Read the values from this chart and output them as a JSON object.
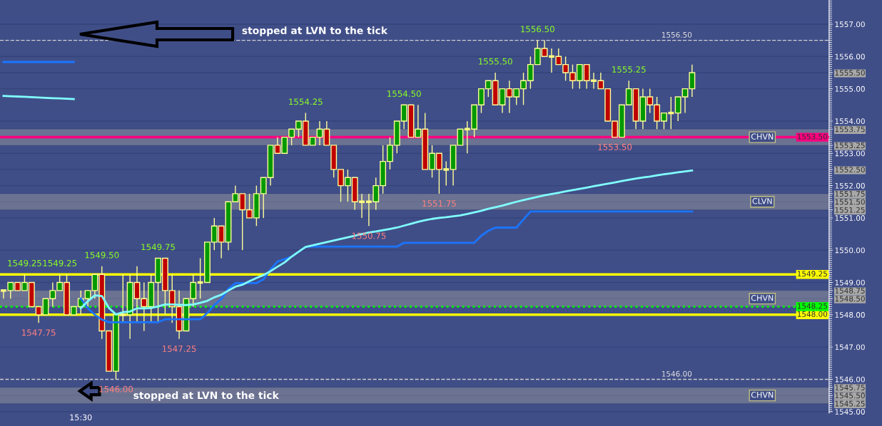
{
  "chart_data": {
    "type": "candlestick",
    "categories": [
      null,
      null,
      null,
      null,
      null,
      null,
      null,
      null,
      null,
      null,
      null,
      "15:30",
      null,
      null,
      null,
      null,
      null,
      null,
      null,
      null,
      null,
      null,
      null,
      null,
      null,
      null,
      null,
      null,
      null,
      null,
      null,
      null,
      null,
      null,
      null,
      null,
      null,
      null,
      null,
      null,
      null,
      null,
      null,
      null,
      null,
      null,
      null,
      null,
      null,
      null,
      null,
      null,
      null,
      null,
      null,
      null,
      null,
      null,
      null,
      null,
      null,
      null,
      null,
      null,
      null,
      null,
      null,
      null,
      null,
      null,
      null,
      null,
      null,
      null,
      null,
      null,
      null,
      null,
      null,
      null,
      null,
      null,
      null,
      null,
      null,
      null,
      null,
      null,
      null,
      null,
      null,
      null,
      null,
      null,
      null,
      null,
      null,
      null,
      null
    ],
    "ohlc": [
      [
        1548.75,
        1548.75,
        1548.5,
        1548.75
      ],
      [
        1548.75,
        1549.0,
        1548.5,
        1549.0
      ],
      [
        1549.0,
        1549.0,
        1548.75,
        1548.75
      ],
      [
        1548.75,
        1549.25,
        1548.75,
        1549.0
      ],
      [
        1549.0,
        1549.0,
        1548.25,
        1548.25
      ],
      [
        1548.25,
        1548.25,
        1547.75,
        1548.0
      ],
      [
        1548.0,
        1548.5,
        1548.0,
        1548.5
      ],
      [
        1548.5,
        1549.0,
        1548.25,
        1548.75
      ],
      [
        1548.75,
        1549.25,
        1548.75,
        1549.0
      ],
      [
        1549.0,
        1549.25,
        1548.0,
        1548.0
      ],
      [
        1548.0,
        1548.25,
        1548.0,
        1548.25
      ],
      [
        1548.25,
        1548.75,
        1548.0,
        1548.5
      ],
      [
        1548.5,
        1548.75,
        1548.25,
        1548.75
      ],
      [
        1548.75,
        1549.25,
        1548.5,
        1549.25
      ],
      [
        1549.25,
        1549.5,
        1547.25,
        1547.5
      ],
      [
        1547.5,
        1547.5,
        1546.25,
        1546.25
      ],
      [
        1546.25,
        1548.0,
        1546.0,
        1548.0
      ],
      [
        1548.0,
        1549.25,
        1547.75,
        1548.0
      ],
      [
        1548.0,
        1549.25,
        1547.25,
        1549.0
      ],
      [
        1549.0,
        1549.5,
        1547.75,
        1548.5
      ],
      [
        1548.5,
        1549.0,
        1547.5,
        1548.25
      ],
      [
        1548.25,
        1549.25,
        1547.75,
        1549.0
      ],
      [
        1549.0,
        1549.75,
        1547.75,
        1549.75
      ],
      [
        1549.75,
        1549.75,
        1548.0,
        1548.75
      ],
      [
        1548.75,
        1549.25,
        1547.75,
        1548.25
      ],
      [
        1548.25,
        1548.75,
        1547.25,
        1547.5
      ],
      [
        1547.5,
        1548.5,
        1547.5,
        1548.5
      ],
      [
        1548.5,
        1549.25,
        1548.25,
        1549.0
      ],
      [
        1549.0,
        1549.75,
        1548.5,
        1549.0
      ],
      [
        1549.0,
        1550.25,
        1549.0,
        1550.25
      ],
      [
        1550.25,
        1551.0,
        1550.0,
        1550.75
      ],
      [
        1550.75,
        1550.75,
        1549.75,
        1550.25
      ],
      [
        1550.25,
        1551.5,
        1550.0,
        1551.5
      ],
      [
        1551.5,
        1552.0,
        1551.5,
        1551.75
      ],
      [
        1551.75,
        1551.75,
        1550.0,
        1551.25
      ],
      [
        1551.25,
        1551.75,
        1551.0,
        1551.0
      ],
      [
        1551.0,
        1552.0,
        1550.75,
        1551.75
      ],
      [
        1551.75,
        1552.25,
        1551.0,
        1552.25
      ],
      [
        1552.25,
        1553.25,
        1552.0,
        1553.25
      ],
      [
        1553.25,
        1553.5,
        1553.0,
        1553.0
      ],
      [
        1553.0,
        1553.5,
        1553.0,
        1553.5
      ],
      [
        1553.5,
        1553.75,
        1553.25,
        1553.75
      ],
      [
        1553.75,
        1554.0,
        1553.5,
        1554.0
      ],
      [
        1554.0,
        1554.25,
        1553.25,
        1553.25
      ],
      [
        1553.25,
        1553.5,
        1553.25,
        1553.5
      ],
      [
        1553.5,
        1554.0,
        1553.25,
        1553.75
      ],
      [
        1553.75,
        1554.0,
        1553.25,
        1553.25
      ],
      [
        1553.25,
        1553.25,
        1552.25,
        1552.5
      ],
      [
        1552.5,
        1552.5,
        1551.5,
        1552.0
      ],
      [
        1552.0,
        1552.5,
        1551.5,
        1552.25
      ],
      [
        1552.25,
        1552.25,
        1551.25,
        1551.5
      ],
      [
        1551.5,
        1551.75,
        1551.0,
        1551.5
      ],
      [
        1551.5,
        1551.75,
        1550.75,
        1551.5
      ],
      [
        1551.5,
        1552.25,
        1551.25,
        1552.0
      ],
      [
        1552.0,
        1553.25,
        1551.75,
        1552.75
      ],
      [
        1552.75,
        1553.5,
        1552.5,
        1553.25
      ],
      [
        1553.25,
        1554.0,
        1553.0,
        1554.0
      ],
      [
        1554.0,
        1554.5,
        1553.75,
        1554.5
      ],
      [
        1554.5,
        1554.5,
        1553.5,
        1553.5
      ],
      [
        1553.5,
        1554.5,
        1553.5,
        1553.75
      ],
      [
        1553.75,
        1554.25,
        1552.5,
        1552.5
      ],
      [
        1552.5,
        1553.25,
        1552.25,
        1553.0
      ],
      [
        1553.0,
        1553.0,
        1551.75,
        1552.5
      ],
      [
        1552.5,
        1552.75,
        1552.0,
        1552.5
      ],
      [
        1552.5,
        1553.25,
        1552.0,
        1553.25
      ],
      [
        1553.25,
        1553.75,
        1553.25,
        1553.75
      ],
      [
        1553.75,
        1554.0,
        1553.0,
        1553.75
      ],
      [
        1553.75,
        1554.5,
        1553.5,
        1554.5
      ],
      [
        1554.5,
        1555.0,
        1554.25,
        1555.0
      ],
      [
        1555.0,
        1555.25,
        1554.75,
        1555.25
      ],
      [
        1555.25,
        1555.5,
        1554.5,
        1554.5
      ],
      [
        1554.5,
        1555.0,
        1554.25,
        1555.0
      ],
      [
        1555.0,
        1555.25,
        1554.25,
        1554.75
      ],
      [
        1554.75,
        1555.0,
        1554.5,
        1555.0
      ],
      [
        1555.0,
        1555.5,
        1554.5,
        1555.25
      ],
      [
        1555.25,
        1556.0,
        1555.0,
        1555.75
      ],
      [
        1555.75,
        1556.5,
        1555.75,
        1556.25
      ],
      [
        1556.25,
        1556.5,
        1556.0,
        1556.0
      ],
      [
        1556.0,
        1556.25,
        1555.5,
        1556.0
      ],
      [
        1556.0,
        1556.25,
        1555.75,
        1555.75
      ],
      [
        1555.75,
        1556.0,
        1555.25,
        1555.5
      ],
      [
        1555.5,
        1555.75,
        1555.0,
        1555.25
      ],
      [
        1555.25,
        1555.75,
        1555.0,
        1555.75
      ],
      [
        1555.75,
        1555.75,
        1555.0,
        1555.25
      ],
      [
        1555.25,
        1555.5,
        1555.0,
        1555.25
      ],
      [
        1555.25,
        1555.5,
        1555.0,
        1555.0
      ],
      [
        1555.0,
        1555.0,
        1554.0,
        1554.0
      ],
      [
        1554.0,
        1554.0,
        1553.5,
        1553.5
      ],
      [
        1553.5,
        1554.5,
        1553.5,
        1554.5
      ],
      [
        1554.5,
        1555.25,
        1554.5,
        1555.0
      ],
      [
        1555.0,
        1555.0,
        1553.75,
        1554.0
      ],
      [
        1554.0,
        1555.0,
        1553.75,
        1554.75
      ],
      [
        1554.75,
        1555.0,
        1554.25,
        1554.5
      ],
      [
        1554.5,
        1554.75,
        1553.75,
        1554.0
      ],
      [
        1554.0,
        1554.25,
        1553.75,
        1554.25
      ],
      [
        1554.25,
        1554.75,
        1553.75,
        1554.25
      ],
      [
        1554.25,
        1554.75,
        1554.0,
        1554.75
      ],
      [
        1554.75,
        1555.0,
        1554.25,
        1555.0
      ],
      [
        1555.0,
        1555.75,
        1554.75,
        1555.5
      ]
    ],
    "colors": [
      "#ffff80",
      "#009900",
      "#c00000",
      "#009900",
      "#c00000",
      "#c00000",
      "#009900",
      "#009900",
      "#009900",
      "#c00000",
      "#009900",
      "#009900",
      "#009900",
      "#009900",
      "#c00000",
      "#c00000",
      "#009900",
      "#ffff80",
      "#009900",
      "#c00000",
      "#c00000",
      "#009900",
      "#009900",
      "#c00000",
      "#c00000",
      "#c00000",
      "#009900",
      "#009900",
      "#ffff80",
      "#009900",
      "#009900",
      "#c00000",
      "#009900",
      "#009900",
      "#c00000",
      "#c00000",
      "#009900",
      "#009900",
      "#009900",
      "#c00000",
      "#009900",
      "#009900",
      "#009900",
      "#c00000",
      "#009900",
      "#009900",
      "#c00000",
      "#c00000",
      "#c00000",
      "#009900",
      "#c00000",
      "#ffff80",
      "#ffff80",
      "#009900",
      "#009900",
      "#009900",
      "#009900",
      "#009900",
      "#c00000",
      "#009900",
      "#c00000",
      "#009900",
      "#c00000",
      "#ffff80",
      "#009900",
      "#009900",
      "#ffff80",
      "#009900",
      "#009900",
      "#009900",
      "#c00000",
      "#009900",
      "#c00000",
      "#009900",
      "#009900",
      "#009900",
      "#009900",
      "#c00000",
      "#ffff80",
      "#c00000",
      "#c00000",
      "#c00000",
      "#009900",
      "#c00000",
      "#ffff80",
      "#c00000",
      "#c00000",
      "#c00000",
      "#009900",
      "#009900",
      "#c00000",
      "#009900",
      "#c00000",
      "#c00000",
      "#009900",
      "#ffff80",
      "#009900",
      "#009900",
      "#009900"
    ],
    "value_labels": [
      null,
      null,
      null,
      "1549.25",
      null,
      "1547.75",
      null,
      null,
      "1549.25",
      null,
      null,
      null,
      null,
      null,
      "1549.50",
      null,
      "1546.00",
      null,
      null,
      null,
      null,
      null,
      "1549.75",
      null,
      null,
      "1547.25",
      null,
      null,
      null,
      null,
      null,
      null,
      null,
      null,
      null,
      null,
      null,
      null,
      null,
      null,
      null,
      null,
      null,
      "1554.25",
      null,
      null,
      null,
      null,
      null,
      null,
      null,
      null,
      "1550.75",
      null,
      null,
      null,
      null,
      "1554.50",
      null,
      null,
      null,
      null,
      "1551.75",
      null,
      null,
      null,
      null,
      null,
      null,
      null,
      "1555.50",
      null,
      null,
      null,
      null,
      null,
      "1556.50",
      null,
      null,
      null,
      null,
      null,
      null,
      null,
      null,
      null,
      null,
      "1553.50",
      null,
      "1555.25",
      null,
      null,
      null,
      null,
      null,
      null,
      null,
      null,
      null
    ],
    "series": [
      {
        "type": "line",
        "color": "#80ffff",
        "values": [
          1554.78,
          1554.77,
          1554.76,
          1554.75,
          1554.74,
          1554.73,
          1554.72,
          1554.71,
          1554.7,
          1554.69,
          1554.68,
          null,
          null,
          null,
          null,
          null,
          null,
          null,
          null,
          null,
          null,
          null,
          null,
          null,
          null,
          null,
          null,
          null,
          null,
          null,
          null,
          null,
          null,
          null,
          null,
          null,
          null,
          null,
          null,
          null,
          null,
          null,
          null,
          null,
          null,
          null,
          null,
          null,
          null,
          null,
          null,
          null,
          null,
          null,
          null,
          null,
          null,
          null,
          null,
          null,
          null,
          null,
          null,
          null,
          null,
          null,
          null,
          null,
          null,
          null,
          null,
          null,
          null,
          null,
          null,
          null,
          null,
          null,
          null,
          null,
          null,
          null,
          null,
          null,
          null,
          null,
          null,
          null,
          null,
          null,
          null,
          null,
          null,
          null,
          null,
          null,
          null,
          null,
          null
        ]
      },
      {
        "type": "line",
        "color": "#1a75ff",
        "values": [
          1555.83,
          1555.83,
          1555.83,
          1555.83,
          1555.83,
          1555.83,
          1555.83,
          1555.83,
          1555.83,
          1555.83,
          1555.83,
          null,
          null,
          null,
          null,
          null,
          null,
          null,
          null,
          null,
          null,
          null,
          null,
          null,
          null,
          null,
          null,
          null,
          null,
          null,
          null,
          null,
          null,
          null,
          null,
          null,
          null,
          null,
          null,
          null,
          null,
          null,
          null,
          null,
          null,
          null,
          null,
          null,
          null,
          null,
          null,
          null,
          null,
          null,
          null,
          null,
          null,
          null,
          null,
          null,
          null,
          null,
          null,
          null,
          null,
          null,
          null,
          null,
          null,
          null,
          null,
          null,
          null,
          null,
          null,
          null,
          null,
          null,
          null,
          null,
          null,
          null,
          null,
          null,
          null,
          null,
          null,
          null,
          null,
          null,
          null,
          null,
          null,
          null,
          null,
          null,
          null,
          null,
          null
        ]
      },
      {
        "type": "line",
        "color": "#1a75ff",
        "values": [
          null,
          null,
          null,
          null,
          null,
          null,
          null,
          null,
          null,
          null,
          null,
          1548.5,
          1548.2,
          1548.0,
          1547.85,
          1547.77,
          1547.77,
          1547.77,
          1547.77,
          1547.77,
          1547.77,
          1547.77,
          1547.77,
          1547.86,
          1547.86,
          1547.86,
          1547.86,
          1547.86,
          1547.86,
          1548.05,
          1548.3,
          1548.49,
          1548.8,
          1548.98,
          1548.98,
          1548.98,
          1548.98,
          1549.1,
          1549.4,
          1549.65,
          1549.72,
          1549.8,
          1549.95,
          1550.1,
          1550.11,
          1550.11,
          1550.11,
          1550.11,
          1550.11,
          1550.11,
          1550.11,
          1550.11,
          1550.11,
          1550.11,
          1550.11,
          1550.11,
          1550.11,
          1550.23,
          1550.23,
          1550.23,
          1550.23,
          1550.23,
          1550.23,
          1550.23,
          1550.23,
          1550.23,
          1550.23,
          1550.23,
          1550.45,
          1550.6,
          1550.7,
          1550.7,
          1550.7,
          1550.7,
          1550.95,
          1551.2,
          1551.2,
          1551.2,
          1551.2,
          1551.2,
          1551.2,
          1551.2,
          1551.2,
          1551.2,
          1551.2,
          1551.2,
          1551.2,
          1551.2,
          1551.2,
          1551.2,
          1551.2,
          1551.2,
          1551.2,
          1551.2,
          1551.2,
          1551.2,
          1551.2,
          1551.2,
          1551.2
        ]
      },
      {
        "type": "line",
        "color": "#80ffff",
        "values": [
          null,
          null,
          null,
          null,
          null,
          null,
          null,
          null,
          null,
          null,
          null,
          1548.2,
          1548.42,
          1548.6,
          1548.58,
          1548.21,
          1548.01,
          1548.08,
          1548.1,
          1548.2,
          1548.2,
          1548.21,
          1548.26,
          1548.32,
          1548.32,
          1548.31,
          1548.3,
          1548.32,
          1548.37,
          1548.43,
          1548.54,
          1548.62,
          1548.75,
          1548.87,
          1548.93,
          1549.04,
          1549.14,
          1549.23,
          1549.35,
          1549.49,
          1549.62,
          1549.8,
          1549.95,
          1550.1,
          1550.15,
          1550.2,
          1550.25,
          1550.3,
          1550.35,
          1550.4,
          1550.45,
          1550.5,
          1550.55,
          1550.58,
          1550.62,
          1550.66,
          1550.7,
          1550.76,
          1550.82,
          1550.88,
          1550.93,
          1550.97,
          1551.0,
          1551.02,
          1551.05,
          1551.08,
          1551.12,
          1551.17,
          1551.22,
          1551.28,
          1551.33,
          1551.38,
          1551.44,
          1551.5,
          1551.55,
          1551.6,
          1551.65,
          1551.7,
          1551.74,
          1551.78,
          1551.82,
          1551.86,
          1551.9,
          1551.94,
          1551.98,
          1552.02,
          1552.06,
          1552.1,
          1552.14,
          1552.18,
          1552.22,
          1552.25,
          1552.28,
          1552.32,
          1552.35,
          1552.38,
          1552.41,
          1552.44,
          1552.47
        ]
      }
    ],
    "ylim": [
      1544.95,
      1557.75
    ],
    "yticks": [
      {
        "value": 1545,
        "label": "1545.00"
      },
      {
        "value": 1546,
        "label": "1546.00"
      },
      {
        "value": 1547,
        "label": "1547.00"
      },
      {
        "value": 1548,
        "label": "1548.00"
      },
      {
        "value": 1549,
        "label": "1549.00"
      },
      {
        "value": 1550,
        "label": "1550.00"
      },
      {
        "value": 1551,
        "label": "1551.00"
      },
      {
        "value": 1552,
        "label": "1552.00"
      },
      {
        "value": 1553,
        "label": "1553.00"
      },
      {
        "value": 1554,
        "label": "1554.00"
      },
      {
        "value": 1555,
        "label": "1555.00"
      },
      {
        "value": 1556,
        "label": "1556.00"
      },
      {
        "value": 1557,
        "label": "1557.00"
      },
      {
        "value": 1555.5,
        "label": "1555.50"
      },
      {
        "value": 1553.75,
        "label": "1553.75"
      },
      {
        "value": 1553.25,
        "label": "1553.25"
      },
      {
        "value": 1552.5,
        "label": "1552.50"
      },
      {
        "value": 1551.75,
        "label": "1551.75"
      },
      {
        "value": 1551.5,
        "label": "1551.50"
      },
      {
        "value": 1551.25,
        "label": "1551.25"
      },
      {
        "value": 1548.75,
        "label": "1548.75"
      },
      {
        "value": 1548.5,
        "label": "1548.50"
      },
      {
        "value": 1545.75,
        "label": "1545.75"
      },
      {
        "value": 1545.5,
        "label": "1545.50"
      },
      {
        "value": 1545.25,
        "label": "1545.25"
      }
    ],
    "grid": "y",
    "ref_lines": [
      {
        "axis": "y",
        "value": 1556.5,
        "label": "1556.50",
        "color": "#d0d0d0",
        "line_style": "dashed"
      },
      {
        "axis": "y",
        "value": 1546.0,
        "label": "1546.00",
        "color": "#d0d0d0",
        "line_style": "dashed"
      },
      {
        "axis": "y",
        "value": 1553.5,
        "label": "1553.50",
        "color": "#ff0080",
        "line_style": "solid"
      },
      {
        "axis": "y",
        "value": 1549.25,
        "label": "1549.25",
        "color": "#ffff00",
        "line_style": "solid"
      },
      {
        "axis": "y",
        "value": 1548.0,
        "label": "1548.00",
        "color": "#ffff00",
        "line_style": "solid"
      },
      {
        "axis": "y",
        "value": 1548.25,
        "label": "1548.25",
        "color": "#00ff00",
        "line_style": "dotted"
      }
    ],
    "bands": [
      {
        "axis": "y",
        "from": 1553.25,
        "to": 1553.75,
        "label": "CHVN",
        "color": "#a0a0a0"
      },
      {
        "axis": "y",
        "from": 1551.25,
        "to": 1551.75,
        "label": "CLVN",
        "color": "#a0a0a0"
      },
      {
        "axis": "y",
        "from": 1548.25,
        "to": 1548.75,
        "label": "CHVN",
        "color": "#a0a0a0"
      },
      {
        "axis": "y",
        "from": 1545.25,
        "to": 1545.75,
        "label": "CHVN",
        "color": "#a0a0a0"
      }
    ],
    "annotations": [
      "stopped at LVN to the tick",
      "stopped at LVN to the tick"
    ]
  }
}
